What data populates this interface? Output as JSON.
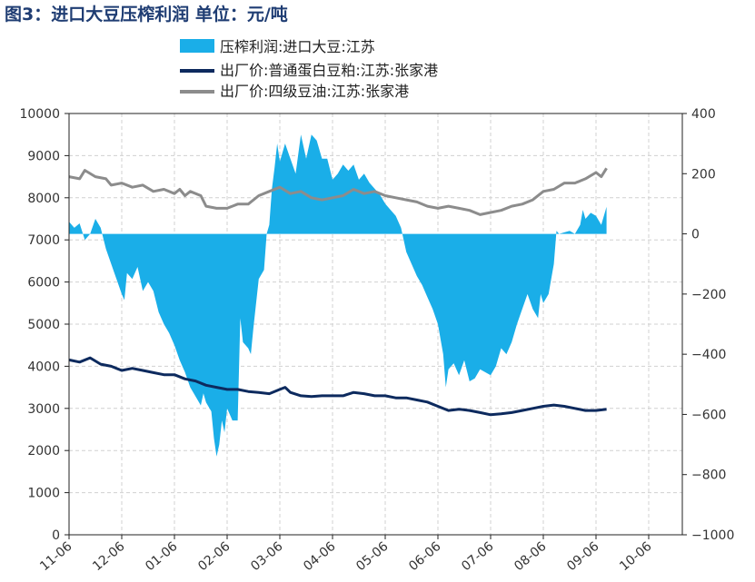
{
  "title": "图3：进口大豆压榨利润 单位：元/吨",
  "colors": {
    "area": "#1aaee8",
    "soymeal": "#0d2a5e",
    "soyoil": "#8c8c8c",
    "grid": "#d0d0d0",
    "title": "#1f3d73"
  },
  "chart_data": {
    "type": "line",
    "title": "图3：进口大豆压榨利润 单位：元/吨",
    "grid": true,
    "legend_position": "top",
    "x_tick_labels": [
      "11-06",
      "12-06",
      "01-06",
      "02-06",
      "03-06",
      "04-06",
      "05-06",
      "06-06",
      "07-06",
      "08-06",
      "09-06",
      "10-06"
    ],
    "y_left": {
      "range": [
        0,
        10000
      ],
      "ticks": [
        0,
        1000,
        2000,
        3000,
        4000,
        5000,
        6000,
        7000,
        8000,
        9000,
        10000
      ]
    },
    "y_right": {
      "range": [
        -1000,
        400
      ],
      "ticks": [
        -1000,
        -800,
        -600,
        -400,
        -200,
        0,
        200,
        400
      ]
    },
    "series": [
      {
        "name": "压榨利润:进口大豆:江苏",
        "type": "area",
        "axis": "right",
        "points": [
          [
            0,
            40
          ],
          [
            0.1,
            20
          ],
          [
            0.2,
            35
          ],
          [
            0.3,
            -20
          ],
          [
            0.4,
            0
          ],
          [
            0.5,
            50
          ],
          [
            0.6,
            20
          ],
          [
            0.7,
            -50
          ],
          [
            0.8,
            -100
          ],
          [
            0.9,
            -150
          ],
          [
            1.0,
            -200
          ],
          [
            1.05,
            -220
          ],
          [
            1.1,
            -130
          ],
          [
            1.2,
            -150
          ],
          [
            1.3,
            -110
          ],
          [
            1.4,
            -190
          ],
          [
            1.5,
            -160
          ],
          [
            1.6,
            -190
          ],
          [
            1.7,
            -260
          ],
          [
            1.8,
            -300
          ],
          [
            1.9,
            -330
          ],
          [
            2.0,
            -370
          ],
          [
            2.1,
            -420
          ],
          [
            2.2,
            -460
          ],
          [
            2.3,
            -510
          ],
          [
            2.4,
            -540
          ],
          [
            2.5,
            -570
          ],
          [
            2.55,
            -530
          ],
          [
            2.6,
            -560
          ],
          [
            2.7,
            -590
          ],
          [
            2.75,
            -680
          ],
          [
            2.8,
            -740
          ],
          [
            2.85,
            -700
          ],
          [
            2.9,
            -620
          ],
          [
            2.95,
            -660
          ],
          [
            3.0,
            -580
          ],
          [
            3.1,
            -620
          ],
          [
            3.2,
            -620
          ],
          [
            3.25,
            -280
          ],
          [
            3.3,
            -360
          ],
          [
            3.4,
            -380
          ],
          [
            3.45,
            -400
          ],
          [
            3.5,
            -310
          ],
          [
            3.6,
            -150
          ],
          [
            3.7,
            -120
          ],
          [
            3.75,
            0
          ],
          [
            3.8,
            30
          ],
          [
            3.85,
            150
          ],
          [
            3.9,
            220
          ],
          [
            3.95,
            300
          ],
          [
            4.0,
            240
          ],
          [
            4.1,
            300
          ],
          [
            4.2,
            250
          ],
          [
            4.3,
            200
          ],
          [
            4.4,
            330
          ],
          [
            4.5,
            250
          ],
          [
            4.6,
            330
          ],
          [
            4.7,
            310
          ],
          [
            4.8,
            250
          ],
          [
            4.9,
            250
          ],
          [
            5.0,
            180
          ],
          [
            5.1,
            200
          ],
          [
            5.2,
            230
          ],
          [
            5.3,
            210
          ],
          [
            5.4,
            230
          ],
          [
            5.5,
            180
          ],
          [
            5.6,
            200
          ],
          [
            5.7,
            170
          ],
          [
            5.8,
            150
          ],
          [
            5.9,
            130
          ],
          [
            6.0,
            100
          ],
          [
            6.1,
            80
          ],
          [
            6.2,
            60
          ],
          [
            6.3,
            20
          ],
          [
            6.35,
            -20
          ],
          [
            6.4,
            -60
          ],
          [
            6.5,
            -100
          ],
          [
            6.6,
            -140
          ],
          [
            6.7,
            -170
          ],
          [
            6.8,
            -210
          ],
          [
            6.9,
            -250
          ],
          [
            7.0,
            -300
          ],
          [
            7.1,
            -400
          ],
          [
            7.15,
            -510
          ],
          [
            7.2,
            -450
          ],
          [
            7.3,
            -430
          ],
          [
            7.4,
            -470
          ],
          [
            7.5,
            -420
          ],
          [
            7.6,
            -490
          ],
          [
            7.7,
            -480
          ],
          [
            7.8,
            -450
          ],
          [
            7.9,
            -460
          ],
          [
            8.0,
            -470
          ],
          [
            8.1,
            -440
          ],
          [
            8.2,
            -380
          ],
          [
            8.3,
            -400
          ],
          [
            8.4,
            -360
          ],
          [
            8.5,
            -300
          ],
          [
            8.6,
            -250
          ],
          [
            8.7,
            -200
          ],
          [
            8.8,
            -250
          ],
          [
            8.9,
            -280
          ],
          [
            8.95,
            -200
          ],
          [
            9.0,
            -230
          ],
          [
            9.1,
            -200
          ],
          [
            9.15,
            -150
          ],
          [
            9.2,
            -100
          ],
          [
            9.25,
            10
          ],
          [
            9.3,
            0
          ],
          [
            9.4,
            5
          ],
          [
            9.5,
            10
          ],
          [
            9.6,
            0
          ],
          [
            9.7,
            30
          ],
          [
            9.75,
            80
          ],
          [
            9.8,
            50
          ],
          [
            9.9,
            70
          ],
          [
            10.0,
            60
          ],
          [
            10.1,
            30
          ],
          [
            10.2,
            90
          ]
        ]
      },
      {
        "name": "出厂价:普通蛋白豆粕:江苏:张家港",
        "type": "line",
        "axis": "left",
        "points": [
          [
            0,
            4150
          ],
          [
            0.2,
            4100
          ],
          [
            0.4,
            4200
          ],
          [
            0.6,
            4050
          ],
          [
            0.8,
            4000
          ],
          [
            1.0,
            3900
          ],
          [
            1.2,
            3950
          ],
          [
            1.4,
            3900
          ],
          [
            1.6,
            3850
          ],
          [
            1.8,
            3800
          ],
          [
            2.0,
            3800
          ],
          [
            2.2,
            3700
          ],
          [
            2.4,
            3650
          ],
          [
            2.6,
            3550
          ],
          [
            2.8,
            3500
          ],
          [
            3.0,
            3450
          ],
          [
            3.2,
            3450
          ],
          [
            3.4,
            3400
          ],
          [
            3.6,
            3380
          ],
          [
            3.8,
            3350
          ],
          [
            4.0,
            3450
          ],
          [
            4.1,
            3500
          ],
          [
            4.2,
            3380
          ],
          [
            4.4,
            3300
          ],
          [
            4.6,
            3280
          ],
          [
            4.8,
            3300
          ],
          [
            5.0,
            3300
          ],
          [
            5.2,
            3300
          ],
          [
            5.4,
            3380
          ],
          [
            5.6,
            3350
          ],
          [
            5.8,
            3300
          ],
          [
            6.0,
            3300
          ],
          [
            6.2,
            3250
          ],
          [
            6.4,
            3250
          ],
          [
            6.6,
            3200
          ],
          [
            6.8,
            3150
          ],
          [
            7.0,
            3050
          ],
          [
            7.2,
            2950
          ],
          [
            7.4,
            2980
          ],
          [
            7.6,
            2950
          ],
          [
            7.8,
            2900
          ],
          [
            8.0,
            2850
          ],
          [
            8.2,
            2870
          ],
          [
            8.4,
            2900
          ],
          [
            8.6,
            2950
          ],
          [
            8.8,
            3000
          ],
          [
            9.0,
            3050
          ],
          [
            9.2,
            3080
          ],
          [
            9.4,
            3050
          ],
          [
            9.6,
            3000
          ],
          [
            9.8,
            2950
          ],
          [
            10.0,
            2950
          ],
          [
            10.2,
            2980
          ]
        ]
      },
      {
        "name": "出厂价:四级豆油:江苏:张家港",
        "type": "line",
        "axis": "left",
        "points": [
          [
            0,
            8500
          ],
          [
            0.2,
            8450
          ],
          [
            0.3,
            8650
          ],
          [
            0.5,
            8500
          ],
          [
            0.7,
            8450
          ],
          [
            0.8,
            8300
          ],
          [
            1.0,
            8350
          ],
          [
            1.2,
            8250
          ],
          [
            1.4,
            8300
          ],
          [
            1.6,
            8150
          ],
          [
            1.8,
            8200
          ],
          [
            2.0,
            8100
          ],
          [
            2.1,
            8200
          ],
          [
            2.2,
            8050
          ],
          [
            2.3,
            8150
          ],
          [
            2.5,
            8050
          ],
          [
            2.6,
            7800
          ],
          [
            2.8,
            7750
          ],
          [
            3.0,
            7750
          ],
          [
            3.2,
            7850
          ],
          [
            3.4,
            7850
          ],
          [
            3.6,
            8050
          ],
          [
            3.8,
            8150
          ],
          [
            4.0,
            8250
          ],
          [
            4.2,
            8100
          ],
          [
            4.4,
            8150
          ],
          [
            4.6,
            8000
          ],
          [
            4.8,
            7950
          ],
          [
            5.0,
            8000
          ],
          [
            5.2,
            8050
          ],
          [
            5.4,
            8200
          ],
          [
            5.6,
            8100
          ],
          [
            5.8,
            8150
          ],
          [
            6.0,
            8050
          ],
          [
            6.2,
            8000
          ],
          [
            6.4,
            7950
          ],
          [
            6.6,
            7900
          ],
          [
            6.8,
            7800
          ],
          [
            7.0,
            7750
          ],
          [
            7.2,
            7800
          ],
          [
            7.4,
            7750
          ],
          [
            7.6,
            7700
          ],
          [
            7.8,
            7600
          ],
          [
            8.0,
            7650
          ],
          [
            8.2,
            7700
          ],
          [
            8.4,
            7800
          ],
          [
            8.6,
            7850
          ],
          [
            8.8,
            7950
          ],
          [
            9.0,
            8150
          ],
          [
            9.2,
            8200
          ],
          [
            9.4,
            8350
          ],
          [
            9.6,
            8350
          ],
          [
            9.8,
            8450
          ],
          [
            10.0,
            8600
          ],
          [
            10.1,
            8500
          ],
          [
            10.2,
            8700
          ]
        ]
      }
    ]
  }
}
